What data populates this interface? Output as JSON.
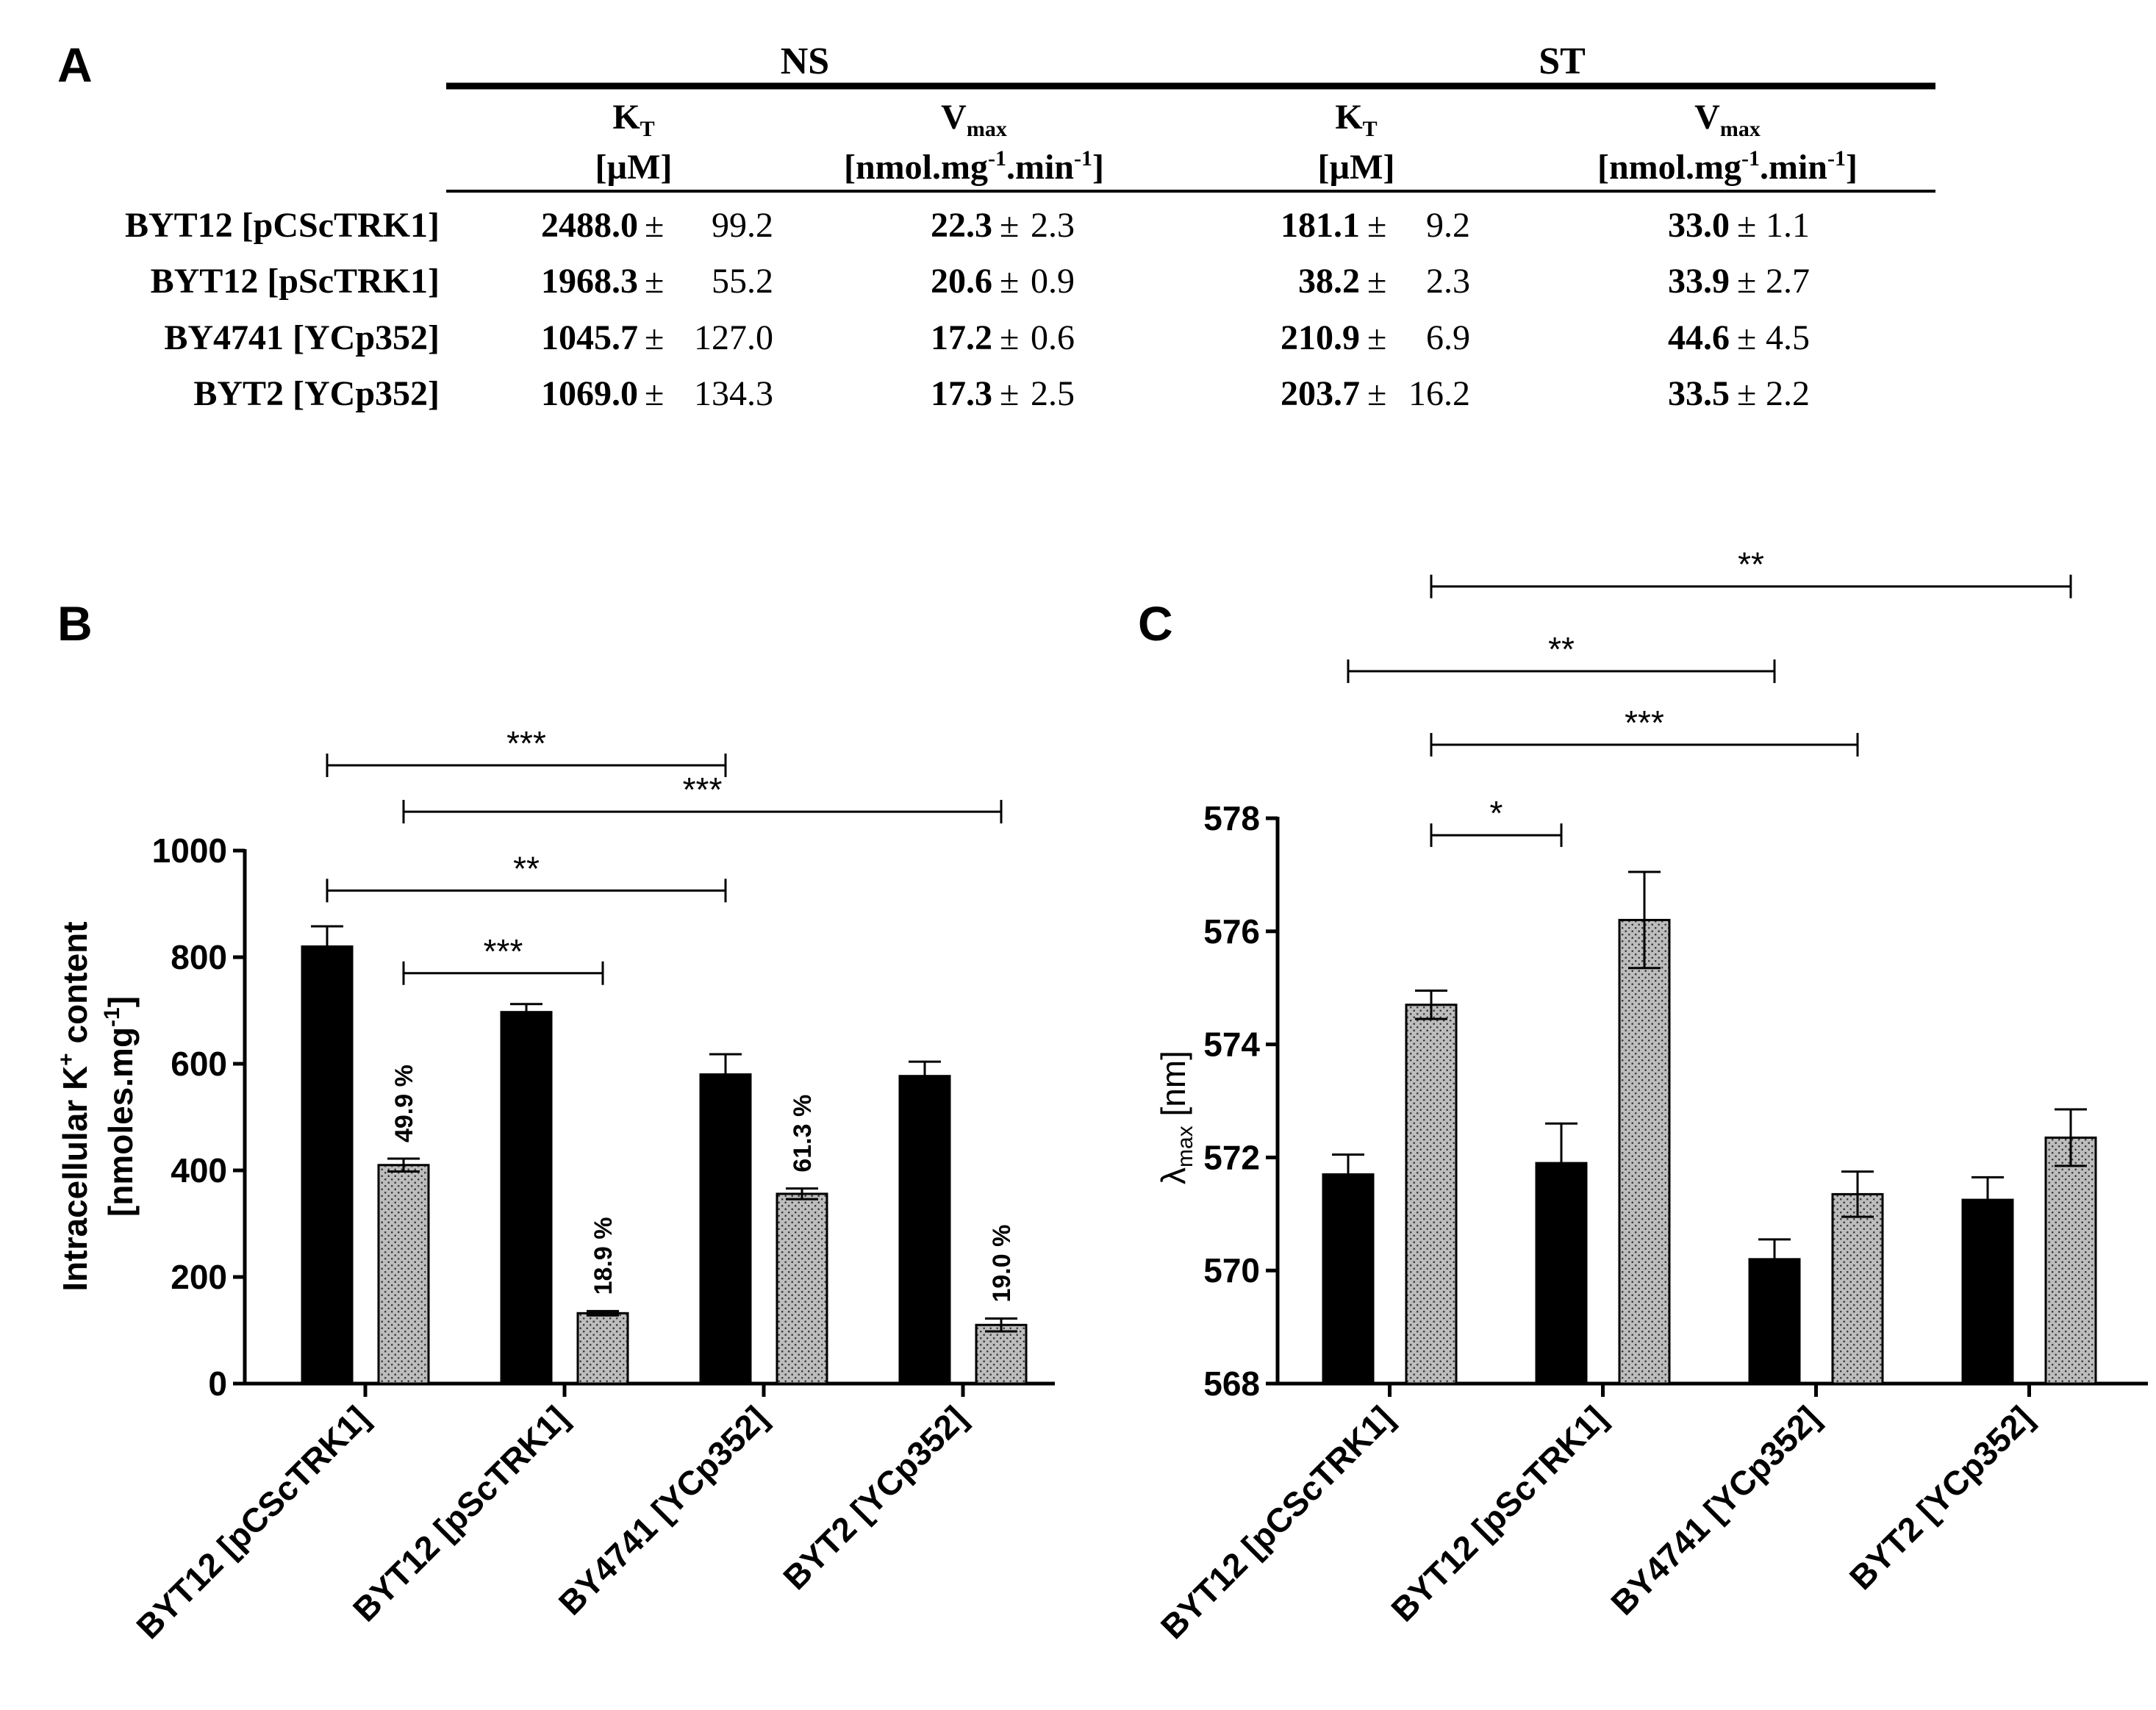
{
  "panels": {
    "a": "A",
    "b": "B",
    "c": "C"
  },
  "kinetics_table": {
    "groups": [
      "NS",
      "ST"
    ],
    "col_headers": [
      {
        "sym": "K",
        "sub": "T",
        "unit": "[µM]"
      },
      {
        "sym": "V",
        "sub": "max",
        "unit": "[nmol.mg",
        "sup1": "-1",
        "mid": ".min",
        "sup2": "-1",
        "end": "]"
      },
      {
        "sym": "K",
        "sub": "T",
        "unit": "[µM]"
      },
      {
        "sym": "V",
        "sub": "max",
        "unit": "[nmol.mg",
        "sup1": "-1",
        "mid": ".min",
        "sup2": "-1",
        "end": "]"
      }
    ],
    "rows": [
      {
        "strain": "BYT12 [pCScTRK1]",
        "cells": [
          [
            "2488.0",
            "±",
            "99.2"
          ],
          [
            "22.3",
            "±",
            "2.3"
          ],
          [
            "181.1",
            "±",
            "9.2"
          ],
          [
            "33.0",
            "±",
            "1.1"
          ]
        ]
      },
      {
        "strain": "BYT12 [pScTRK1]",
        "cells": [
          [
            "1968.3",
            "±",
            "55.2"
          ],
          [
            "20.6",
            "±",
            "0.9"
          ],
          [
            "38.2",
            "±",
            "2.3"
          ],
          [
            "33.9",
            "±",
            "2.7"
          ]
        ]
      },
      {
        "strain": "BY4741 [YCp352]",
        "cells": [
          [
            "1045.7",
            "±",
            "127.0"
          ],
          [
            "17.2",
            "±",
            "0.6"
          ],
          [
            "210.9",
            "±",
            "6.9"
          ],
          [
            "44.6",
            "±",
            "4.5"
          ]
        ]
      },
      {
        "strain": "BYT2 [YCp352]",
        "cells": [
          [
            "1069.0",
            "±",
            "134.3"
          ],
          [
            "17.3",
            "±",
            "2.5"
          ],
          [
            "203.7",
            "±",
            "16.2"
          ],
          [
            "33.5",
            "±",
            "2.2"
          ]
        ]
      }
    ]
  },
  "colors": {
    "dark_bar": "#000000",
    "light_bar": "#bdbdbd",
    "dot": "#3a3a3a"
  },
  "chart_data": [
    {
      "type": "bar",
      "panel": "B",
      "categories": [
        "BYT12 [pCScTRK1]",
        "BYT12 [pScTRK1]",
        "BY4741 [YCp352]",
        "BYT2 [YCp352]"
      ],
      "series": [
        {
          "name": "NS",
          "style": "dark",
          "values": [
            820,
            697,
            580,
            577
          ],
          "errors": [
            38,
            15,
            38,
            27
          ]
        },
        {
          "name": "ST",
          "style": "dotted",
          "values": [
            410,
            132,
            356,
            110
          ],
          "errors": [
            12,
            4,
            10,
            12
          ]
        }
      ],
      "bar_labels": [
        "49.9 %",
        "18.9 %",
        "61.3 %",
        "19.0 %"
      ],
      "ylabel_main": "Intracellular K",
      "ylabel_sup": "+",
      "ylabel_tail": " content",
      "ylabel2_main": "[nmoles.mg",
      "ylabel2_sup": "-1",
      "ylabel2_tail": "]",
      "ylim": [
        0,
        1000
      ],
      "yticks": [
        0,
        200,
        400,
        600,
        800,
        1000
      ],
      "significance": [
        {
          "from": [
            0,
            0
          ],
          "to": [
            2,
            0
          ],
          "label": "***",
          "level": 1160
        },
        {
          "from": [
            0,
            1
          ],
          "to": [
            3,
            1
          ],
          "label": "***",
          "level": 1073
        },
        {
          "from": [
            0,
            0
          ],
          "to": [
            2,
            0
          ],
          "label": "**",
          "level": 925
        },
        {
          "from": [
            0,
            1
          ],
          "to": [
            1,
            1
          ],
          "label": "***",
          "level": 770
        }
      ]
    },
    {
      "type": "bar",
      "panel": "C",
      "categories": [
        "BYT12 [pCScTRK1]",
        "BYT12 [pScTRK1]",
        "BY4741 [YCp352]",
        "BYT2 [YCp352]"
      ],
      "series": [
        {
          "name": "NS",
          "style": "dark",
          "values": [
            571.7,
            571.9,
            570.2,
            571.25
          ],
          "errors": [
            0.35,
            0.7,
            0.35,
            0.4
          ]
        },
        {
          "name": "ST",
          "style": "dotted",
          "values": [
            574.7,
            576.2,
            571.35,
            572.35
          ],
          "errors": [
            0.25,
            0.85,
            0.4,
            0.5
          ]
        }
      ],
      "ylabel_greek": "λ",
      "ylabel_sub": "max",
      "ylabel_tail": " [nm]",
      "ylim": [
        568,
        578
      ],
      "yticks": [
        568,
        570,
        572,
        574,
        576,
        578
      ],
      "significance": [
        {
          "from": [
            0,
            1
          ],
          "to": [
            3,
            1
          ],
          "label": "**",
          "level": 582.1
        },
        {
          "from": [
            0,
            0
          ],
          "to": [
            2,
            0
          ],
          "label": "**",
          "level": 580.6
        },
        {
          "from": [
            0,
            1
          ],
          "to": [
            2,
            1
          ],
          "label": "***",
          "level": 579.3
        },
        {
          "from": [
            0,
            1
          ],
          "to": [
            1,
            0
          ],
          "label": "*",
          "level": 577.7
        }
      ]
    }
  ]
}
